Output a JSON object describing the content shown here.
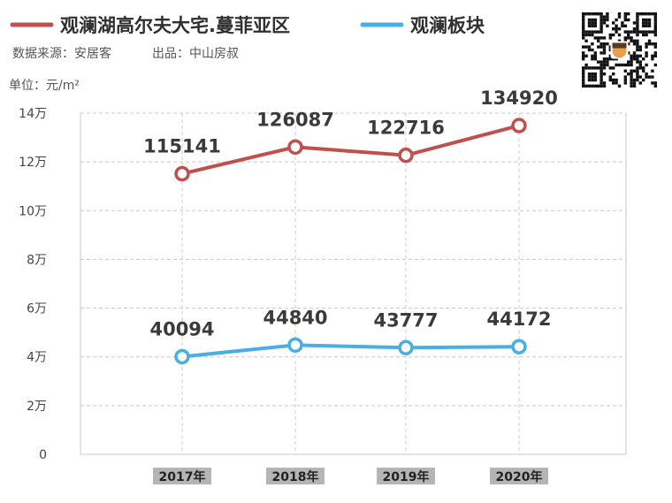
{
  "legend": [
    {
      "name": "观澜湖高尔夫大宅.蔓菲亚区",
      "color": "#c0504d"
    },
    {
      "name": "观澜板块",
      "color": "#4aaee0"
    }
  ],
  "meta": {
    "source": "数据来源：安居客",
    "producer": "出品：中山房叔",
    "unit": "单位：元/m²"
  },
  "chart_data": {
    "type": "line",
    "categories": [
      "2017年",
      "2018年",
      "2019年",
      "2020年"
    ],
    "ylim": [
      0,
      140000
    ],
    "yticks": [
      {
        "value": 0,
        "label": "0"
      },
      {
        "value": 20000,
        "label": "2万"
      },
      {
        "value": 40000,
        "label": "4万"
      },
      {
        "value": 60000,
        "label": "6万"
      },
      {
        "value": 80000,
        "label": "8万"
      },
      {
        "value": 100000,
        "label": "10万"
      },
      {
        "value": 120000,
        "label": "12万"
      },
      {
        "value": 140000,
        "label": "14万"
      }
    ],
    "grid": true,
    "legend_position": "top-left",
    "series": [
      {
        "name": "观澜湖高尔夫大宅.蔓菲亚区",
        "color": "#c0504d",
        "values": [
          115141,
          126087,
          122716,
          134920
        ]
      },
      {
        "name": "观澜板块",
        "color": "#4aaee0",
        "values": [
          40094,
          44840,
          43777,
          44172
        ]
      }
    ]
  }
}
